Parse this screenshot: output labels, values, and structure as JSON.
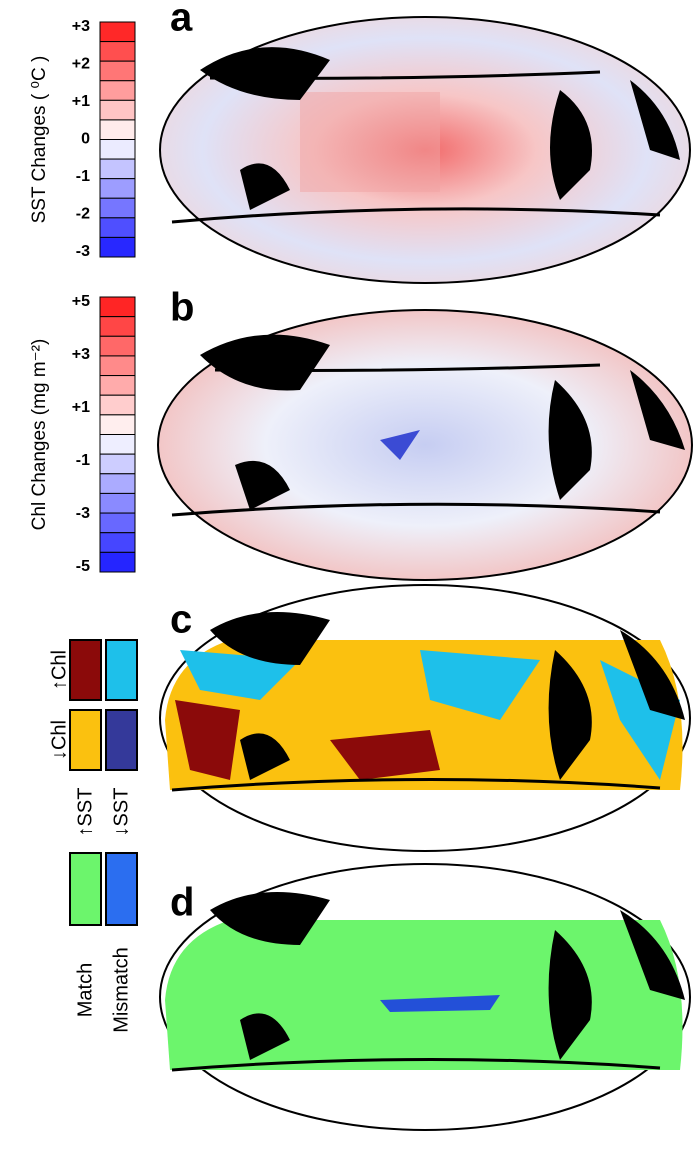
{
  "panels": [
    {
      "label": "a",
      "colorbar": {
        "title": "SST Changes  ( ⁰C )",
        "ticks": [
          "+3",
          "+2",
          "+1",
          "0",
          "-1",
          "-2",
          "-3"
        ]
      }
    },
    {
      "label": "b",
      "colorbar": {
        "title": "Chl Changes (mg m⁻²)",
        "ticks": [
          "+5",
          "+3",
          "+1",
          "-1",
          "-3",
          "-5"
        ]
      }
    },
    {
      "label": "c",
      "legend": [
        "↑Chl",
        "↓Chl",
        "↑SST",
        "↓SST"
      ]
    },
    {
      "label": "d",
      "legend": [
        "Match",
        "Mismatch"
      ]
    }
  ]
}
